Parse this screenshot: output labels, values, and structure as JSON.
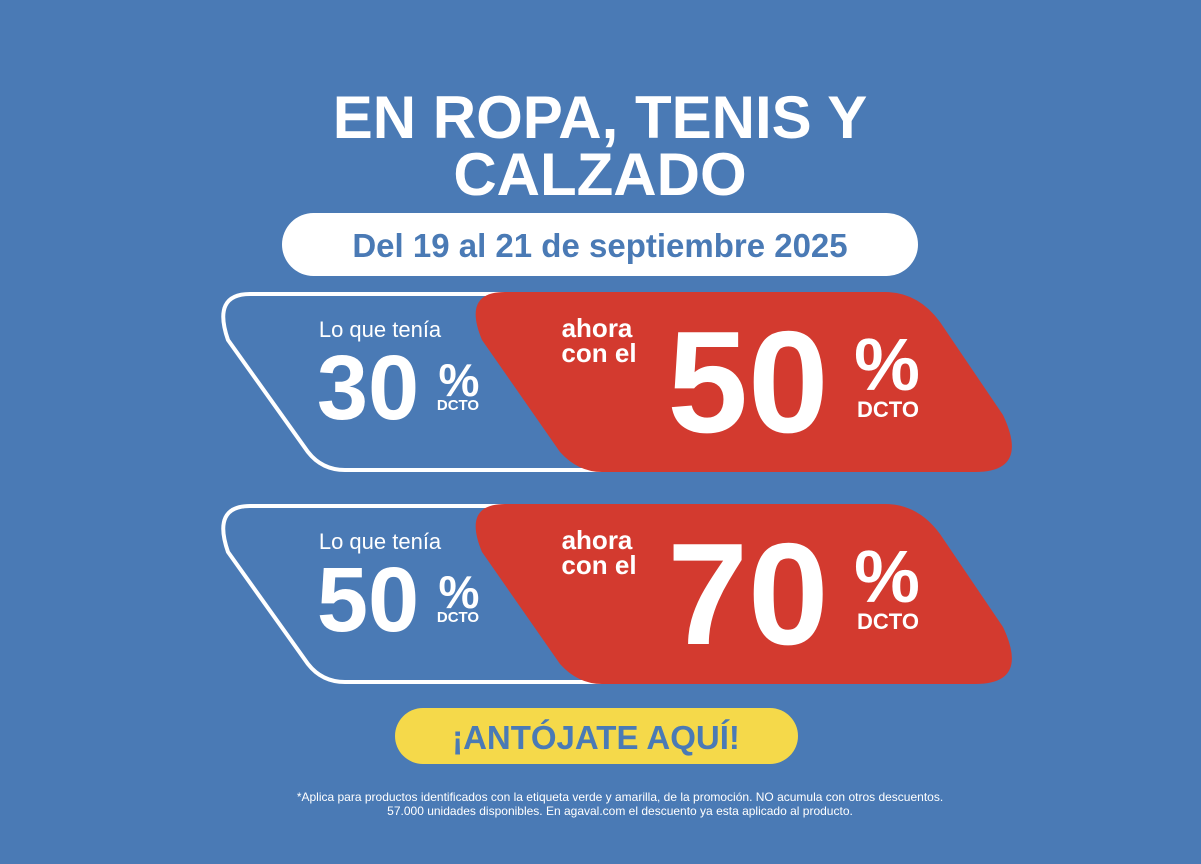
{
  "title": {
    "lines": [
      "EN ROPA, TENIS Y",
      "CALZADO"
    ]
  },
  "date": "Del 19 al 21 de septiembre 2025",
  "offers": [
    {
      "before_label": "Lo que tenía",
      "before_value": 30,
      "before_symbol": "%",
      "before_unit": "DCTO",
      "now_label": [
        "ahora",
        "con el"
      ],
      "now_value": 50,
      "now_symbol": "%",
      "now_unit": "DCTO"
    },
    {
      "before_label": "Lo que tenía",
      "before_value": 50,
      "before_symbol": "%",
      "before_unit": "DCTO",
      "now_label": [
        "ahora",
        "con el"
      ],
      "now_value": 70,
      "now_symbol": "%",
      "now_unit": "DCTO"
    }
  ],
  "cta": "¡ANTÓJATE AQUÍ!",
  "disclaimer": [
    "*Aplica para productos identificados con la etiqueta verde y amarilla, de la promoción. NO acumula con otros descuentos.",
    "57.000 unidades disponibles. En agaval.com el descuento ya esta aplicado al producto."
  ]
}
